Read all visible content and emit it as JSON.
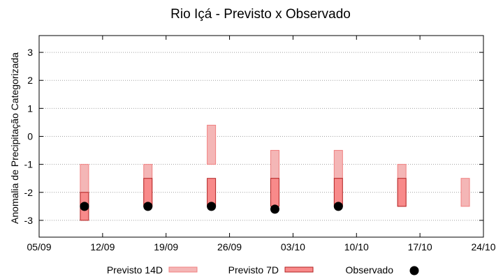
{
  "chart_data": {
    "type": "bar",
    "title": "Rio Içá - Previsto x Observado",
    "ylabel": "Anomalia de Precipitação Categorizada",
    "xlabel": "",
    "ylim": [
      -3.6,
      3.6
    ],
    "yticks": [
      "3",
      "2",
      "1",
      "0",
      "-1",
      "-2",
      "-3"
    ],
    "xticks": [
      "05/09",
      "12/09",
      "19/09",
      "26/09",
      "03/10",
      "10/10",
      "17/10",
      "24/10"
    ],
    "grid": "horizontal dotted",
    "legend_position": "bottom",
    "series": [
      {
        "name": "Previsto 14D",
        "kind": "range",
        "color": "#f4b6b6",
        "stroke": "#f08080",
        "data": [
          {
            "x": "10/09",
            "low": -2.5,
            "high": -1.0
          },
          {
            "x": "17/09",
            "low": -2.5,
            "high": -1.0
          },
          {
            "x": "24/09",
            "low": -1.0,
            "high": 0.4
          },
          {
            "x": "01/10",
            "low": -1.5,
            "high": -0.5
          },
          {
            "x": "08/10",
            "low": -1.5,
            "high": -0.5
          },
          {
            "x": "15/10",
            "low": -2.5,
            "high": -1.0
          },
          {
            "x": "22/10",
            "low": -2.5,
            "high": -1.5
          }
        ]
      },
      {
        "name": "Previsto 7D",
        "kind": "range",
        "color": "#f88a8a",
        "stroke": "#b22222",
        "data": [
          {
            "x": "10/09",
            "low": -3.0,
            "high": -2.0
          },
          {
            "x": "17/09",
            "low": -2.5,
            "high": -1.5
          },
          {
            "x": "24/09",
            "low": -2.5,
            "high": -1.5
          },
          {
            "x": "01/10",
            "low": -2.5,
            "high": -1.5
          },
          {
            "x": "08/10",
            "low": -2.5,
            "high": -1.5
          },
          {
            "x": "15/10",
            "low": -2.5,
            "high": -1.5
          }
        ]
      },
      {
        "name": "Observado",
        "kind": "point",
        "color": "#000000",
        "data": [
          {
            "x": "10/09",
            "y": -2.5
          },
          {
            "x": "17/09",
            "y": -2.5
          },
          {
            "x": "24/09",
            "y": -2.5
          },
          {
            "x": "01/10",
            "y": -2.6
          },
          {
            "x": "08/10",
            "y": -2.5
          }
        ]
      }
    ]
  }
}
